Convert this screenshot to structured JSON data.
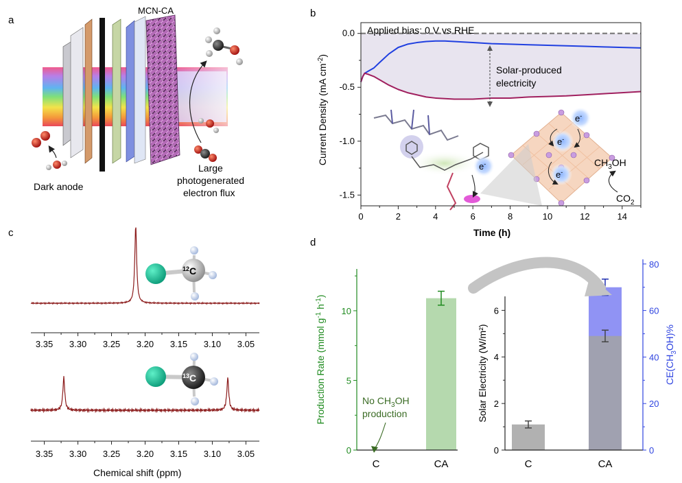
{
  "panel_labels": {
    "a": "a",
    "b": "b",
    "c": "c",
    "d": "d"
  },
  "panel_a": {
    "device_label": "MCN-CA",
    "anode_label": "Dark anode",
    "flux_label_lines": [
      "Large",
      "photogenerated",
      "electron flux"
    ]
  },
  "colors": {
    "current_upper": "#1f3fe0",
    "current_lower": "#a01f5e",
    "bias_line": "#777777",
    "shade": "#e8e4ef",
    "nmr_trace": "#8b1a1a",
    "rate_bar": "#b5d9ae",
    "rate_axis": "#1e8a1e",
    "elec_bar": "#a3a3a3",
    "ce_bar": "#7c80f2",
    "ce_axis": "#2f44e0"
  },
  "chart_data": [
    {
      "id": "b",
      "type": "line",
      "xlabel": "Time (h)",
      "ylabel_base": "Current Density (mA cm",
      "ylabel_sup": "-2",
      "ylabel_end": ")",
      "xlim": [
        0,
        15
      ],
      "ylim": [
        -1.6,
        0.1
      ],
      "xticks": [
        0,
        2,
        4,
        6,
        8,
        10,
        12,
        14
      ],
      "yticks": [
        -1.5,
        -1.0,
        -0.5,
        0.0
      ],
      "ytick_labels": [
        "-1.5",
        "-1.0",
        "-0.5",
        "0.0"
      ],
      "annotations": {
        "bias": "Applied bias: 0 V vs RHE",
        "solar_lines": [
          "Solar-produced",
          "electricity"
        ],
        "product_main": "CH",
        "product_sub": "3",
        "product_end": "OH",
        "reactant_main": "CO",
        "reactant_sub": "2",
        "electron": "e",
        "electron_sup": "-"
      },
      "bias_value": 0.0,
      "series": [
        {
          "x": [
            0,
            0.1,
            0.2,
            0.4,
            0.7,
            1,
            1.5,
            2,
            2.5,
            3,
            3.5,
            4,
            4.5,
            5,
            6,
            7,
            8,
            9,
            10,
            11,
            12,
            13,
            14,
            15
          ],
          "y": [
            -0.45,
            -0.4,
            -0.37,
            -0.35,
            -0.32,
            -0.27,
            -0.19,
            -0.13,
            -0.1,
            -0.085,
            -0.075,
            -0.07,
            -0.07,
            -0.075,
            -0.085,
            -0.095,
            -0.1,
            -0.105,
            -0.11,
            -0.115,
            -0.12,
            -0.125,
            -0.13,
            -0.135
          ]
        },
        {
          "x": [
            0,
            0.1,
            0.2,
            0.4,
            0.7,
            1,
            1.5,
            2,
            2.5,
            3,
            3.5,
            4,
            5,
            6,
            7,
            8,
            9,
            10,
            11,
            12,
            13,
            14,
            15
          ],
          "y": [
            -0.45,
            -0.4,
            -0.37,
            -0.38,
            -0.4,
            -0.43,
            -0.48,
            -0.52,
            -0.55,
            -0.57,
            -0.59,
            -0.6,
            -0.61,
            -0.61,
            -0.6,
            -0.6,
            -0.59,
            -0.585,
            -0.58,
            -0.57,
            -0.56,
            -0.55,
            -0.54
          ]
        }
      ]
    },
    {
      "id": "c",
      "type": "line",
      "xlabel": "Chemical shift (ppm)",
      "xlim": [
        3.37,
        3.03
      ],
      "xticks": [
        3.35,
        3.3,
        3.25,
        3.2,
        3.15,
        3.1,
        3.05
      ],
      "xtick_labels": [
        "3.35",
        "3.30",
        "3.25",
        "3.20",
        "3.15",
        "3.10",
        "3.05"
      ],
      "spectra": [
        {
          "label_sup": "12",
          "label": "C",
          "peaks_ppm": [
            3.214
          ],
          "peak_heights": [
            1.0
          ]
        },
        {
          "label_sup": "13",
          "label": "C",
          "peaks_ppm": [
            3.321,
            3.077
          ],
          "peak_heights": [
            0.95,
            0.95
          ]
        }
      ]
    },
    {
      "id": "d",
      "type": "bar",
      "categories": [
        "C",
        "CA"
      ],
      "series": [
        {
          "values": [
            0,
            10.9
          ],
          "errors": [
            0,
            0.5
          ],
          "axis": "rate"
        },
        {
          "values": [
            1.1,
            4.9
          ],
          "errors": [
            0.15,
            0.25
          ],
          "axis": "electricity"
        },
        {
          "values": [
            null,
            70
          ],
          "errors": [
            null,
            3.5
          ],
          "axis": "ce"
        }
      ],
      "rate_axis": {
        "label_base": "Production Rate (mmol g",
        "label_sup1": "-1",
        "label_mid": " h",
        "label_sup2": "-1",
        "label_end": ")",
        "ylim": [
          0,
          13
        ],
        "ticks": [
          0,
          5,
          10
        ]
      },
      "electricity_axis": {
        "label": "Solar Electricity (W/m²)",
        "ylim": [
          0,
          6.6
        ],
        "ticks": [
          0,
          2,
          4,
          6
        ]
      },
      "ce_axis": {
        "label_base": "CE(CH",
        "label_sub": "3",
        "label_end": "OH)%",
        "ylim": [
          0,
          82
        ],
        "ticks": [
          0,
          20,
          40,
          60,
          80
        ]
      },
      "annotation": {
        "line1_base": "No CH",
        "line1_sub": "3",
        "line1_end": "OH",
        "line2": "production"
      }
    }
  ]
}
